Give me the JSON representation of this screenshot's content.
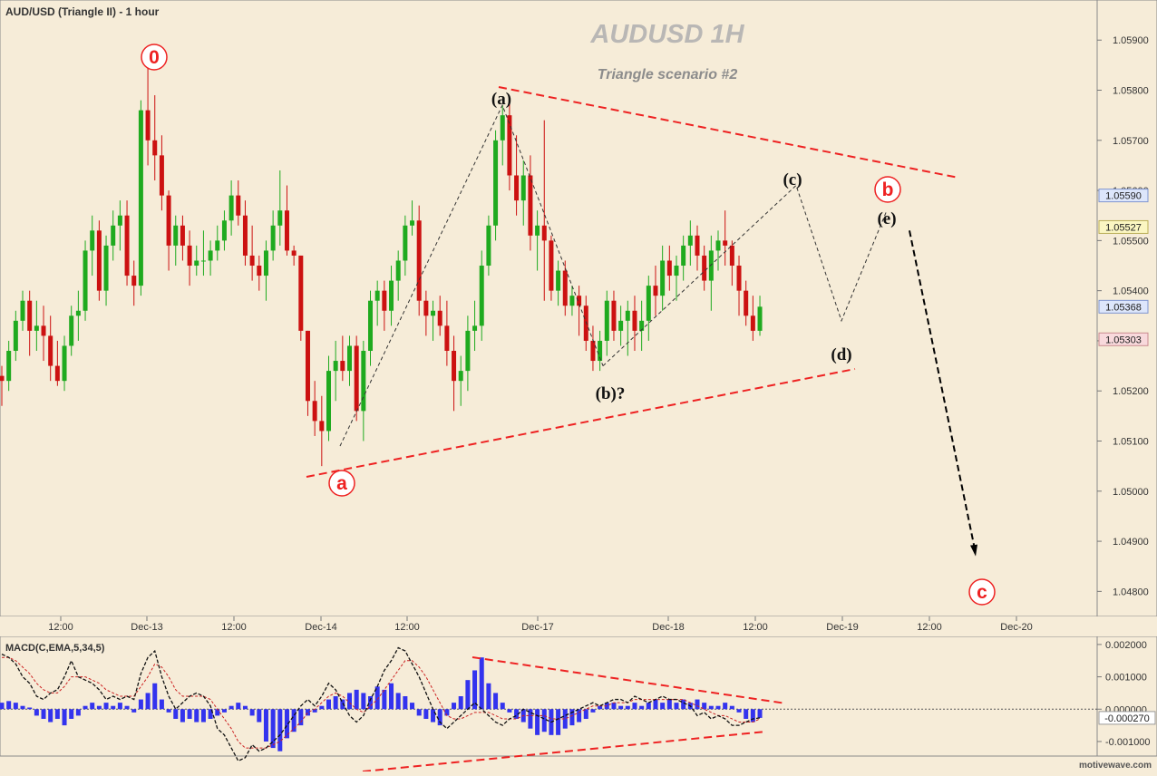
{
  "header": {
    "symbol_title": "AUD/USD (Triangle II) - 1 hour",
    "watermark": "AUDUSD  1H",
    "subtitle": "Triangle scenario #2",
    "footer_brand": "motivewave.com"
  },
  "colors": {
    "background": "#f6ecd8",
    "up_candle": "#1faa1f",
    "down_candle": "#cc1111",
    "trendline": "#ee2222",
    "wave_path": "#333333",
    "macd_hist": "#3333ee",
    "macd_line": "#111111",
    "signal_line": "#cc2222"
  },
  "chart_data": [
    {
      "type": "candlestick",
      "title": "AUDUSD  1H",
      "subtitle": "Triangle scenario #2",
      "ylim": [
        1.0475,
        1.0598
      ],
      "y_ticks": [
        "1.05900",
        "1.05800",
        "1.05700",
        "1.05600",
        "1.05500",
        "1.05400",
        "1.05300",
        "1.05200",
        "1.05100",
        "1.05000",
        "1.04900",
        "1.04800"
      ],
      "x_ticks": [
        "12:00",
        "Dec-13",
        "12:00",
        "Dec-14",
        "12:00",
        "Dec-17",
        "Dec-18",
        "12:00",
        "Dec-19",
        "12:00",
        "Dec-20"
      ],
      "price_tags": [
        {
          "label": "1.05590",
          "value": 1.0559,
          "style": "blue"
        },
        {
          "label": "1.05527",
          "value": 1.05527,
          "style": "yellow"
        },
        {
          "label": "1.05368",
          "value": 1.05368,
          "style": "blue"
        },
        {
          "label": "1.05303",
          "value": 1.05303,
          "style": "pink"
        }
      ],
      "candles": [
        [
          1.0523,
          1.0525,
          1.0517,
          1.0522
        ],
        [
          1.0522,
          1.053,
          1.052,
          1.0528
        ],
        [
          1.0528,
          1.0536,
          1.0526,
          1.0534
        ],
        [
          1.0534,
          1.054,
          1.0532,
          1.0538
        ],
        [
          1.0538,
          1.054,
          1.0527,
          1.0532
        ],
        [
          1.0532,
          1.0538,
          1.0528,
          1.0533
        ],
        [
          1.0533,
          1.0537,
          1.0526,
          1.0531
        ],
        [
          1.0531,
          1.0535,
          1.0522,
          1.0525
        ],
        [
          1.0525,
          1.053,
          1.0521,
          1.0522
        ],
        [
          1.0522,
          1.0531,
          1.052,
          1.0529
        ],
        [
          1.0529,
          1.0537,
          1.0527,
          1.0535
        ],
        [
          1.0535,
          1.054,
          1.053,
          1.0536
        ],
        [
          1.0536,
          1.055,
          1.0534,
          1.0548
        ],
        [
          1.0548,
          1.0555,
          1.0543,
          1.0552
        ],
        [
          1.0552,
          1.0554,
          1.0538,
          1.054
        ],
        [
          1.054,
          1.0551,
          1.0537,
          1.0549
        ],
        [
          1.0549,
          1.0556,
          1.0546,
          1.0553
        ],
        [
          1.0553,
          1.0558,
          1.0548,
          1.0555
        ],
        [
          1.0555,
          1.0558,
          1.0541,
          1.0543
        ],
        [
          1.0543,
          1.0546,
          1.0537,
          1.0541
        ],
        [
          1.0541,
          1.0578,
          1.0539,
          1.0576
        ],
        [
          1.0576,
          1.0585,
          1.0565,
          1.057
        ],
        [
          1.057,
          1.0579,
          1.0562,
          1.0567
        ],
        [
          1.0567,
          1.0571,
          1.0556,
          1.0559
        ],
        [
          1.0559,
          1.056,
          1.0544,
          1.0549
        ],
        [
          1.0549,
          1.0555,
          1.0545,
          1.0553
        ],
        [
          1.0553,
          1.0555,
          1.0546,
          1.0549
        ],
        [
          1.0549,
          1.0552,
          1.0541,
          1.0545
        ],
        [
          1.0545,
          1.0549,
          1.0543,
          1.0546
        ],
        [
          1.0546,
          1.0552,
          1.0543,
          1.0546
        ],
        [
          1.0546,
          1.055,
          1.0543,
          1.0548
        ],
        [
          1.0548,
          1.0553,
          1.0546,
          1.055
        ],
        [
          1.055,
          1.0556,
          1.0548,
          1.0554
        ],
        [
          1.0554,
          1.0562,
          1.0551,
          1.0559
        ],
        [
          1.0559,
          1.0562,
          1.0553,
          1.0555
        ],
        [
          1.0555,
          1.0558,
          1.0545,
          1.0547
        ],
        [
          1.0547,
          1.0553,
          1.0542,
          1.0545
        ],
        [
          1.0545,
          1.0547,
          1.054,
          1.0543
        ],
        [
          1.0543,
          1.055,
          1.0538,
          1.0548
        ],
        [
          1.0548,
          1.0556,
          1.0546,
          1.0553
        ],
        [
          1.0553,
          1.0564,
          1.0549,
          1.0556
        ],
        [
          1.0556,
          1.0561,
          1.0547,
          1.0548
        ],
        [
          1.0548,
          1.0549,
          1.0545,
          1.0547
        ],
        [
          1.0547,
          1.0547,
          1.053,
          1.0532
        ],
        [
          1.0532,
          1.0532,
          1.0515,
          1.0518
        ],
        [
          1.0518,
          1.0522,
          1.0511,
          1.0514
        ],
        [
          1.0514,
          1.0519,
          1.0505,
          1.0512
        ],
        [
          1.0512,
          1.0527,
          1.051,
          1.0524
        ],
        [
          1.0524,
          1.053,
          1.0518,
          1.0526
        ],
        [
          1.0526,
          1.0531,
          1.0522,
          1.0524
        ],
        [
          1.0524,
          1.0531,
          1.0521,
          1.0529
        ],
        [
          1.0529,
          1.0531,
          1.0514,
          1.0516
        ],
        [
          1.0516,
          1.053,
          1.051,
          1.0528
        ],
        [
          1.0528,
          1.054,
          1.0525,
          1.0538
        ],
        [
          1.0538,
          1.0542,
          1.0533,
          1.054
        ],
        [
          1.054,
          1.0542,
          1.0532,
          1.0536
        ],
        [
          1.0536,
          1.0545,
          1.0533,
          1.0542
        ],
        [
          1.0542,
          1.0548,
          1.0538,
          1.0546
        ],
        [
          1.0546,
          1.0555,
          1.0543,
          1.0553
        ],
        [
          1.0553,
          1.0558,
          1.0551,
          1.0554
        ],
        [
          1.0554,
          1.0557,
          1.0535,
          1.0538
        ],
        [
          1.0538,
          1.054,
          1.0531,
          1.0535
        ],
        [
          1.0535,
          1.0538,
          1.053,
          1.0536
        ],
        [
          1.0536,
          1.0539,
          1.0531,
          1.0533
        ],
        [
          1.0533,
          1.0538,
          1.0525,
          1.0528
        ],
        [
          1.0528,
          1.0531,
          1.0516,
          1.0522
        ],
        [
          1.0522,
          1.0527,
          1.0517,
          1.0524
        ],
        [
          1.0524,
          1.0535,
          1.052,
          1.0532
        ],
        [
          1.0532,
          1.0538,
          1.0528,
          1.0533
        ],
        [
          1.0533,
          1.0548,
          1.053,
          1.0545
        ],
        [
          1.0545,
          1.0555,
          1.0543,
          1.0553
        ],
        [
          1.0553,
          1.0572,
          1.055,
          1.057
        ],
        [
          1.057,
          1.0577,
          1.0565,
          1.0575
        ],
        [
          1.0575,
          1.0578,
          1.056,
          1.0563
        ],
        [
          1.0563,
          1.0571,
          1.0555,
          1.0558
        ],
        [
          1.0558,
          1.0566,
          1.0553,
          1.0563
        ],
        [
          1.0563,
          1.0567,
          1.0548,
          1.0551
        ],
        [
          1.0551,
          1.0556,
          1.0544,
          1.0553
        ],
        [
          1.0553,
          1.0574,
          1.0538,
          1.055
        ],
        [
          1.055,
          1.0551,
          1.0538,
          1.054
        ],
        [
          1.054,
          1.0546,
          1.0537,
          1.0544
        ],
        [
          1.0544,
          1.0546,
          1.0535,
          1.0537
        ],
        [
          1.0537,
          1.0541,
          1.0535,
          1.0539
        ],
        [
          1.0539,
          1.0541,
          1.0531,
          1.0537
        ],
        [
          1.0537,
          1.0539,
          1.0528,
          1.053
        ],
        [
          1.053,
          1.0533,
          1.0524,
          1.0526
        ],
        [
          1.0526,
          1.0532,
          1.0524,
          1.053
        ],
        [
          1.053,
          1.054,
          1.0527,
          1.0538
        ],
        [
          1.0538,
          1.054,
          1.053,
          1.0532
        ],
        [
          1.0532,
          1.0537,
          1.0529,
          1.0534
        ],
        [
          1.0534,
          1.0538,
          1.0527,
          1.0536
        ],
        [
          1.0536,
          1.0539,
          1.0528,
          1.0532
        ],
        [
          1.0532,
          1.0538,
          1.0528,
          1.0534
        ],
        [
          1.0534,
          1.0543,
          1.053,
          1.0541
        ],
        [
          1.0541,
          1.0545,
          1.0535,
          1.0539
        ],
        [
          1.0539,
          1.0549,
          1.0536,
          1.0546
        ],
        [
          1.0546,
          1.0549,
          1.054,
          1.0543
        ],
        [
          1.0543,
          1.0547,
          1.0538,
          1.0545
        ],
        [
          1.0545,
          1.0551,
          1.0542,
          1.0549
        ],
        [
          1.0549,
          1.0554,
          1.0545,
          1.0551
        ],
        [
          1.0551,
          1.0553,
          1.0544,
          1.0547
        ],
        [
          1.0547,
          1.0549,
          1.054,
          1.0542
        ],
        [
          1.0542,
          1.0551,
          1.0536,
          1.0548
        ],
        [
          1.0548,
          1.0552,
          1.0544,
          1.055
        ],
        [
          1.055,
          1.0556,
          1.0545,
          1.0549
        ],
        [
          1.0549,
          1.055,
          1.0541,
          1.0545
        ],
        [
          1.0545,
          1.0547,
          1.0535,
          1.054
        ],
        [
          1.054,
          1.0542,
          1.0533,
          1.0535
        ],
        [
          1.0535,
          1.0539,
          1.053,
          1.0532
        ],
        [
          1.0532,
          1.0539,
          1.0531,
          1.05368
        ]
      ],
      "wave_labels": [
        {
          "text": "0",
          "style": "circled-red"
        },
        {
          "text": "a",
          "style": "circled-red"
        },
        {
          "text": "b",
          "style": "circled-red"
        },
        {
          "text": "c",
          "style": "circled-red"
        },
        {
          "text": "(a)",
          "style": "black"
        },
        {
          "text": "(b)?",
          "style": "black"
        },
        {
          "text": "(c)",
          "style": "black"
        },
        {
          "text": "(d)",
          "style": "black"
        },
        {
          "text": "(e)",
          "style": "black"
        }
      ],
      "projected_path": [
        {
          "label": "(b)?",
          "value": 1.0525
        },
        {
          "label": "(c)",
          "value": 1.0561
        },
        {
          "label": "(d)",
          "value": 1.0534
        },
        {
          "label": "(e)",
          "value": 1.0556
        }
      ],
      "target": {
        "label": "c",
        "value": 1.0487
      }
    },
    {
      "type": "histogram-line",
      "title": "MACD(C,EMA,5,34,5)",
      "ylim": [
        -0.00145,
        0.00225
      ],
      "y_ticks": [
        "0.002000",
        "0.001000",
        "0.000000",
        "-0.001000"
      ],
      "last_value_tag": "-0.000270",
      "histogram": [
        0.0002,
        0.00025,
        0.0002,
        0.0001,
        5e-05,
        -0.0002,
        -0.0003,
        -0.0004,
        -0.0003,
        -0.0005,
        -0.0003,
        -0.0002,
        0.0001,
        0.0002,
        0.0001,
        0.0002,
        0.0001,
        0.0002,
        0.0001,
        -0.0001,
        0.0003,
        0.0005,
        0.0008,
        0.0003,
        -0.0001,
        -0.0003,
        -0.0004,
        -0.0003,
        -0.0004,
        -0.0004,
        -0.0003,
        -0.0002,
        -0.0001,
        0.0001,
        0.0002,
        0.0001,
        -0.0002,
        -0.0004,
        -0.001,
        -0.0012,
        -0.0013,
        -0.0009,
        -0.0007,
        -0.0005,
        -0.0002,
        -0.0001,
        0.0001,
        0.0003,
        0.0004,
        0.0003,
        0.0005,
        0.0006,
        0.0005,
        0.0004,
        0.0007,
        0.0006,
        0.0008,
        0.0005,
        0.0004,
        0.0002,
        -0.0002,
        -0.0003,
        -0.0004,
        -0.0005,
        -0.0002,
        0.0002,
        0.0004,
        0.0009,
        0.0012,
        0.0016,
        0.0008,
        0.0005,
        0.0002,
        -0.0001,
        -0.0003,
        -0.0004,
        -0.0006,
        -0.0008,
        -0.0007,
        -0.0008,
        -0.0008,
        -0.0006,
        -0.0005,
        -0.0004,
        -0.0003,
        -0.0001,
        0.0001,
        0.0002,
        0.0002,
        0.0001,
        0.0001,
        0.0002,
        0.0001,
        0.0002,
        0.0003,
        0.0002,
        0.0003,
        0.0002,
        0.0003,
        0.0002,
        0.0003,
        0.0002,
        0.0001,
        0.0001,
        0.0002,
        0.0001,
        -0.0001,
        -0.0003,
        -0.0004,
        -0.00027
      ],
      "macd_line": [
        0.0017,
        0.0016,
        0.0014,
        0.001,
        0.0008,
        0.0004,
        0.0003,
        0.0005,
        0.0006,
        0.001,
        0.0015,
        0.001,
        0.0009,
        0.0008,
        0.0006,
        0.0003,
        0.0004,
        0.0003,
        0.0004,
        0.0003,
        0.0011,
        0.0016,
        0.0018,
        0.001,
        0.0004,
        0.0,
        0.0002,
        0.0004,
        0.0005,
        0.0004,
        0.0001,
        -0.0006,
        -0.0008,
        -0.0012,
        -0.0016,
        -0.0015,
        -0.0011,
        -0.0013,
        -0.0012,
        -0.001,
        -0.0008,
        -0.0005,
        -0.0002,
        0.0001,
        0.0003,
        0.0001,
        0.0004,
        0.0008,
        0.0006,
        0.0002,
        -0.0002,
        -0.0004,
        -0.0002,
        0.0003,
        0.0007,
        0.0012,
        0.0015,
        0.0019,
        0.0018,
        0.0014,
        0.001,
        0.0005,
        0.0,
        -0.0004,
        -0.0006,
        -0.0004,
        -0.0002,
        0.0,
        0.0002,
        0.0,
        -0.0002,
        -0.0004,
        -0.0005,
        -0.0003,
        -0.0002,
        0.0,
        -0.0001,
        -0.0002,
        -0.0003,
        -0.0004,
        -0.0003,
        -0.0002,
        -0.0001,
        0.0,
        0.0001,
        0.0002,
        0.0001,
        0.0002,
        0.0003,
        0.0003,
        0.0002,
        0.0004,
        0.0003,
        0.0002,
        0.0003,
        0.0004,
        0.0003,
        0.0003,
        0.0002,
        0.0001,
        -0.0002,
        -0.0001,
        -0.0003,
        -0.0002,
        -0.0003,
        -0.0005,
        -0.0005,
        -0.0004,
        -0.0003,
        -0.00027
      ],
      "signal_line": [
        0.0016,
        0.0016,
        0.0015,
        0.0013,
        0.0011,
        0.0008,
        0.0006,
        0.0005,
        0.0005,
        0.0007,
        0.001,
        0.001,
        0.001,
        0.0009,
        0.0008,
        0.0006,
        0.0005,
        0.0004,
        0.0004,
        0.0004,
        0.0007,
        0.001,
        0.0014,
        0.0013,
        0.001,
        0.0006,
        0.0004,
        0.0004,
        0.0004,
        0.0004,
        0.0003,
        0.0,
        -0.0003,
        -0.0006,
        -0.001,
        -0.0012,
        -0.0012,
        -0.0012,
        -0.0012,
        -0.0011,
        -0.001,
        -0.0008,
        -0.0006,
        -0.0004,
        -0.0001,
        0.0,
        0.0002,
        0.0004,
        0.0005,
        0.0004,
        0.0002,
        0.0,
        -0.0001,
        0.0001,
        0.0003,
        0.0006,
        0.0009,
        0.0012,
        0.0015,
        0.0015,
        0.0013,
        0.001,
        0.0006,
        0.0002,
        -0.0002,
        -0.0003,
        -0.0003,
        -0.0002,
        -0.0001,
        -0.0001,
        -0.0001,
        -0.0002,
        -0.0003,
        -0.0003,
        -0.0003,
        -0.0002,
        -0.0002,
        -0.0002,
        -0.0002,
        -0.0003,
        -0.0003,
        -0.0003,
        -0.0002,
        -0.0001,
        0.0,
        0.0001,
        0.0001,
        0.0001,
        0.0002,
        0.0002,
        0.0002,
        0.0003,
        0.0003,
        0.0003,
        0.0003,
        0.0003,
        0.0003,
        0.0003,
        0.0003,
        0.0002,
        0.0001,
        0.0,
        -0.0001,
        -0.0002,
        -0.0002,
        -0.0003,
        -0.0004,
        -0.0004,
        -0.0004,
        -0.0003
      ]
    }
  ]
}
